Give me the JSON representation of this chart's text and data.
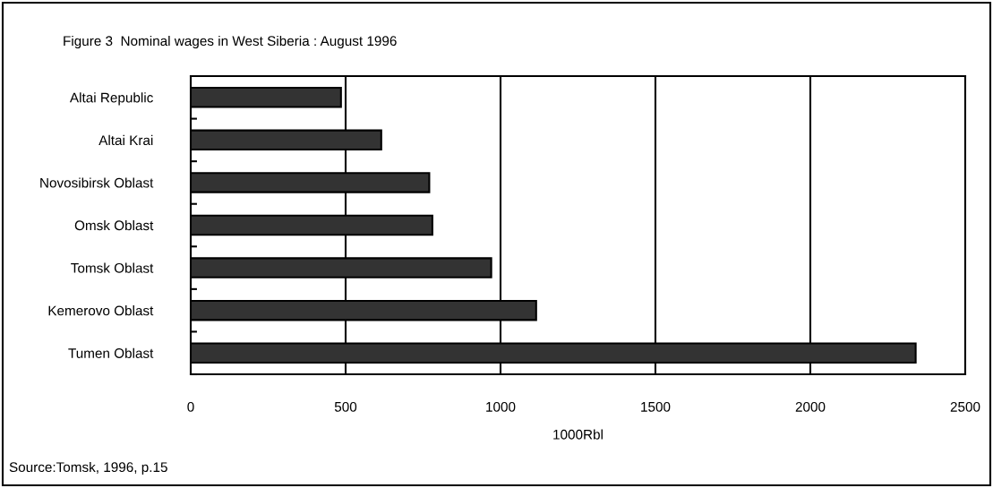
{
  "chart_data": {
    "type": "bar",
    "orientation": "horizontal",
    "title": "Figure 3  Nominal wages in West Siberia : August 1996",
    "categories": [
      "Altai Republic",
      "Altai Krai",
      "Novosibirsk Oblast",
      "Omsk Oblast",
      "Tomsk Oblast",
      "Kemerovo Oblast",
      "Tumen Oblast"
    ],
    "values": [
      485,
      615,
      770,
      780,
      970,
      1115,
      2340
    ],
    "color": "#333333",
    "xlim": [
      0,
      2500
    ],
    "xticks": [
      0,
      500,
      1000,
      1500,
      2000,
      2500
    ],
    "xlabel": "1000Rbl",
    "grid": "x",
    "annotations": [
      "Source:Tomsk, 1996, p.15"
    ]
  }
}
